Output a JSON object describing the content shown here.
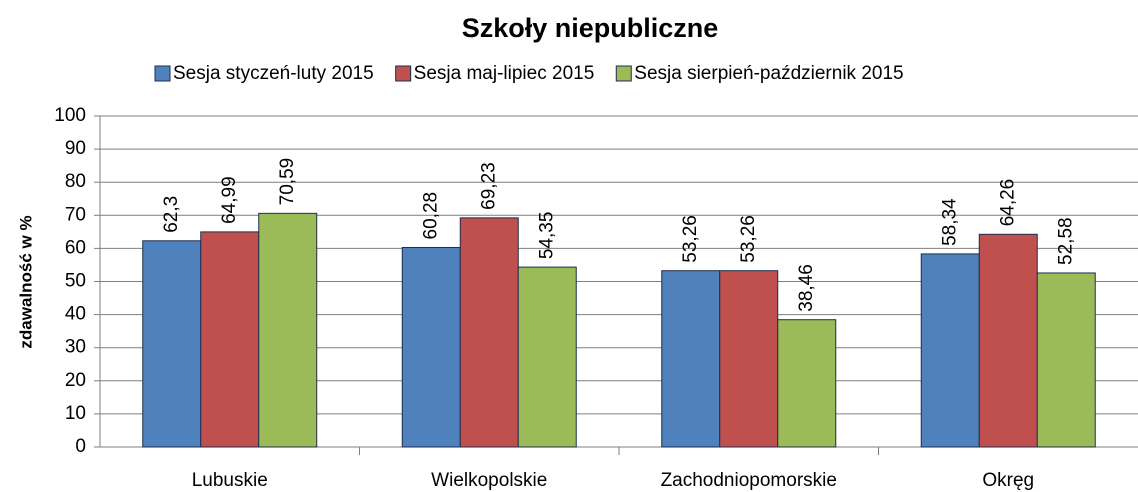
{
  "chart_data": {
    "type": "bar",
    "title": "Szkoły niepubliczne",
    "y_label": "zdawalność w %",
    "categories": [
      "Lubuskie",
      "Wielkopolskie",
      "Zachodniopomorskie",
      "Okręg"
    ],
    "series": [
      {
        "name": "Sesja styczeń-luty 2015",
        "color": "#4f81bd",
        "values": [
          62.3,
          60.28,
          53.26,
          58.34
        ],
        "value_labels": [
          "62,3",
          "60,28",
          "53,26",
          "58,34"
        ]
      },
      {
        "name": "Sesja maj-lipiec 2015",
        "color": "#c0504d",
        "values": [
          64.99,
          69.23,
          53.26,
          64.26
        ],
        "value_labels": [
          "64,99",
          "69,23",
          "53,26",
          "64,26"
        ]
      },
      {
        "name": "Sesja sierpień-październik 2015",
        "color": "#9bbb59",
        "values": [
          70.59,
          54.35,
          38.46,
          52.58
        ],
        "value_labels": [
          "70,59",
          "54,35",
          "38,46",
          "52,58"
        ]
      }
    ],
    "ylim": [
      0,
      100
    ],
    "yticks": [
      0,
      10,
      20,
      30,
      40,
      50,
      60,
      70,
      80,
      90,
      100
    ],
    "grid": true,
    "legend": "top"
  }
}
